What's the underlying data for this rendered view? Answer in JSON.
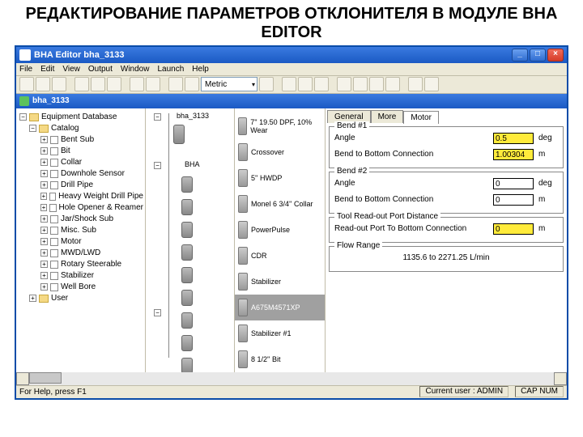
{
  "slide_title": "РЕДАКТИРОВАНИЕ ПАРАМЕТРОВ ОТКЛОНИТЕЛЯ В МОДУЛЕ BHA EDITOR",
  "window": {
    "title": "BHA Editor  bha_3133",
    "menu": [
      "File",
      "Edit",
      "View",
      "Output",
      "Window",
      "Launch",
      "Help"
    ],
    "metric_label": "Metric",
    "doc_title": "bha_3133"
  },
  "tree": {
    "root": "Equipment Database",
    "catalog": "Catalog",
    "items": [
      "Bent Sub",
      "Bit",
      "Collar",
      "Downhole Sensor",
      "Drill Pipe",
      "Heavy Weight Drill Pipe",
      "Hole Opener & Reamer",
      "Jar/Shock Sub",
      "Misc. Sub",
      "Motor",
      "MWD/LWD",
      "Rotary Steerable",
      "Stabilizer",
      "Well Bore"
    ],
    "user": "User"
  },
  "schematic": {
    "label_top": "bha_3133",
    "label_bha": "BHA"
  },
  "components": [
    "7'' 19.50 DPF, 10% Wear",
    "Crossover",
    "5'' HWDP",
    "Monel 6 3/4'' Collar",
    "PowerPulse",
    "CDR",
    "Stabilizer",
    "A675M4571XP",
    "Stabilizer #1",
    "8 1/2'' Bit"
  ],
  "selected_component_index": 7,
  "tabs": [
    "General",
    "More",
    "Motor"
  ],
  "active_tab": 2,
  "bend1": {
    "title": "Bend #1",
    "angle_label": "Angle",
    "angle_value": "0.5",
    "angle_unit": "deg",
    "conn_label": "Bend to Bottom Connection",
    "conn_value": "1.00304",
    "conn_unit": "m"
  },
  "bend2": {
    "title": "Bend #2",
    "angle_label": "Angle",
    "angle_value": "0",
    "angle_unit": "deg",
    "conn_label": "Bend to Bottom Connection",
    "conn_value": "0",
    "conn_unit": "m"
  },
  "tool_readout": {
    "title": "Tool Read-out Port Distance",
    "label": "Read-out Port To Bottom Connection",
    "value": "0",
    "unit": "m"
  },
  "flow_range": {
    "title": "Flow Range",
    "text": "1135.6 to    2271.25    L/min"
  },
  "status": {
    "help": "For Help, press F1",
    "user": "Current user : ADMIN",
    "caps": "CAP  NUM"
  }
}
